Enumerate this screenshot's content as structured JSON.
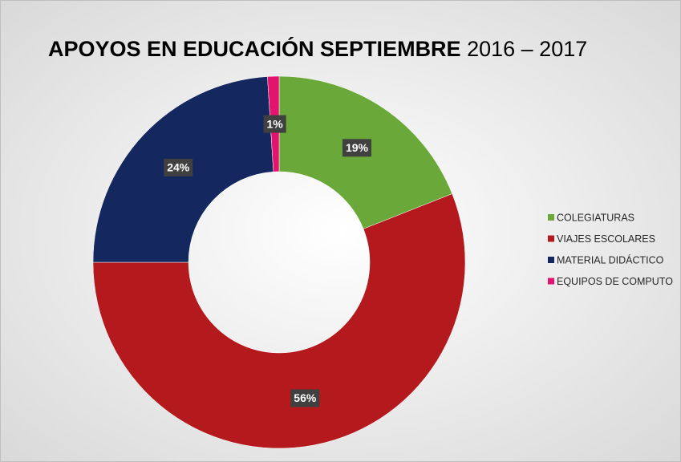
{
  "chart_data": {
    "type": "donut",
    "title": [
      "APOYOS EN EDUCACIÓN SEPTIEMBRE",
      "2016 – 2017"
    ],
    "categories": [
      "COLEGIATURAS",
      "VIAJES ESCOLARES",
      "MATERIAL DIDÁCTICO",
      "EQUIPOS DE COMPUTO"
    ],
    "values": [
      19,
      56,
      24,
      1
    ],
    "value_labels": [
      "19%",
      "56%",
      "24%",
      "1%"
    ],
    "colors": [
      "#6aa83a",
      "#b3191d",
      "#14285f",
      "#e3146e"
    ],
    "legend": "right"
  }
}
